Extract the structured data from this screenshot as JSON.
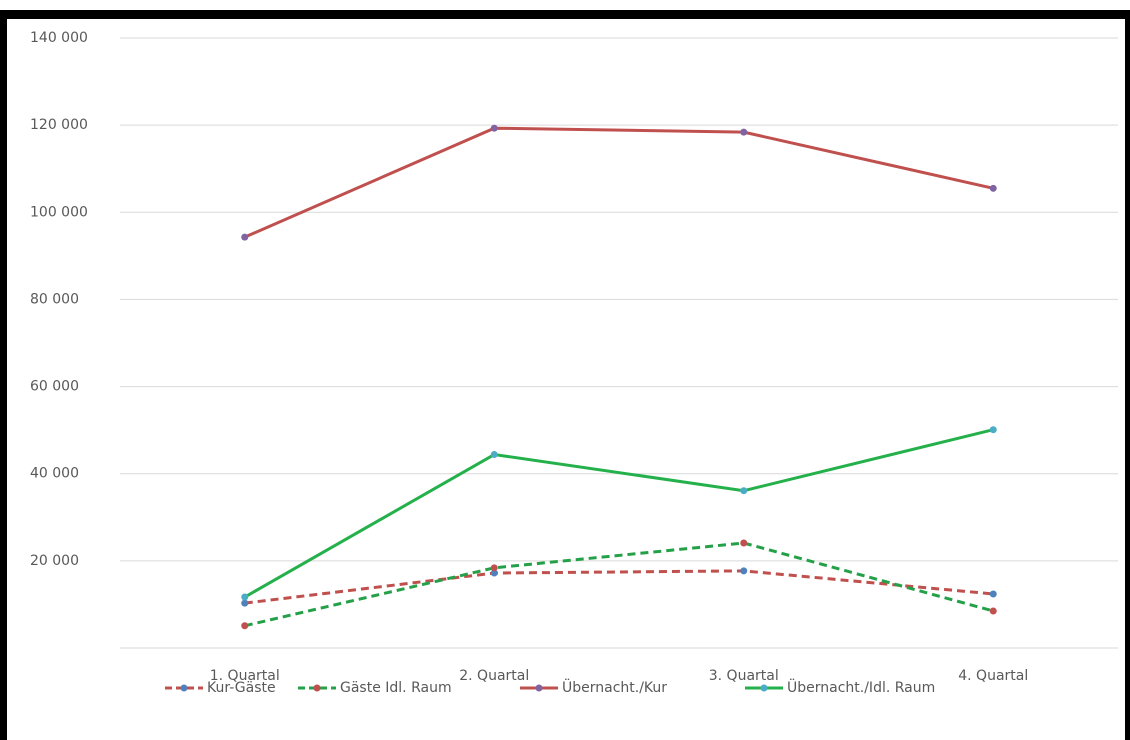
{
  "chart_data": {
    "type": "line",
    "categories": [
      "1. Quartal",
      "2. Quartal",
      "3. Quartal",
      "4. Quartal"
    ],
    "series": [
      {
        "name": "Kur-Gäste",
        "color": "#c0504d",
        "marker_color": "#4f81bd",
        "dashed": true,
        "values": [
          10300,
          17200,
          17700,
          12400
        ]
      },
      {
        "name": "Gäste Idl. Raum",
        "color": "#24a148",
        "marker_color": "#c0504d",
        "dashed": true,
        "values": [
          5100,
          18400,
          24100,
          8500
        ]
      },
      {
        "name": "Übernacht./Kur",
        "color": "#c0504d",
        "marker_color": "#8064a2",
        "dashed": false,
        "values": [
          94300,
          119300,
          118400,
          105500
        ]
      },
      {
        "name": "Übernacht./Idl. Raum",
        "color": "#24b04a",
        "marker_color": "#4bacc6",
        "dashed": false,
        "values": [
          11700,
          44400,
          36100,
          50100
        ]
      }
    ],
    "ylim": [
      0,
      140000
    ],
    "yticks": [
      {
        "value": 20000,
        "label": "20 000"
      },
      {
        "value": 40000,
        "label": "40 000"
      },
      {
        "value": 60000,
        "label": "60 000"
      },
      {
        "value": 80000,
        "label": "80 000"
      },
      {
        "value": 100000,
        "label": "100 000"
      },
      {
        "value": 120000,
        "label": "120 000"
      },
      {
        "value": 140000,
        "label": "140 000"
      }
    ],
    "grid": true,
    "legend": "bottom"
  }
}
